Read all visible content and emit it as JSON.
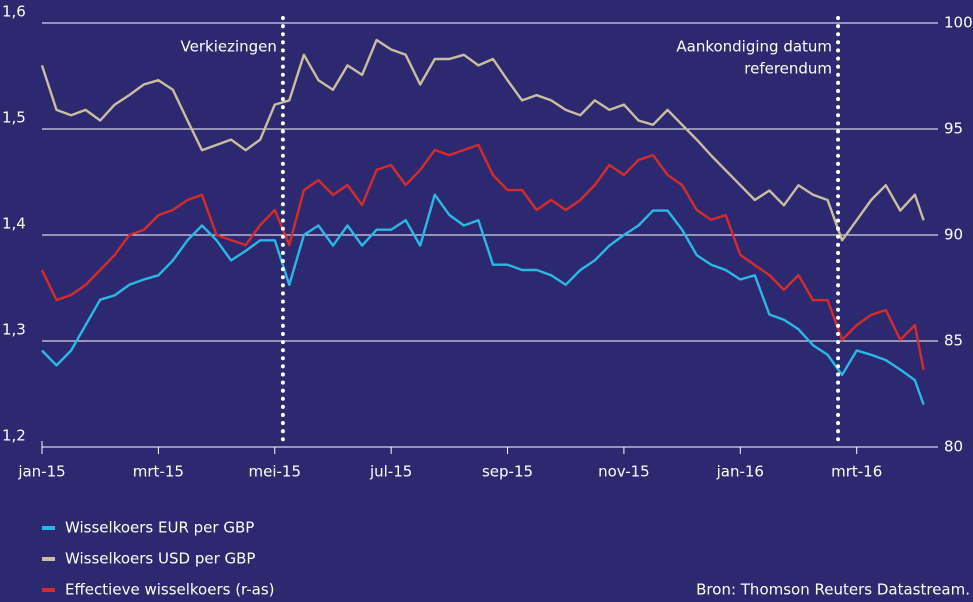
{
  "chart_data": {
    "type": "line",
    "source": "Bron: Thomson Reuters Datastream.",
    "x": [
      0,
      0.25,
      0.5,
      0.75,
      1,
      1.25,
      1.5,
      1.75,
      2,
      2.25,
      2.5,
      2.75,
      3,
      3.25,
      3.5,
      3.75,
      4,
      4.25,
      4.5,
      4.75,
      5,
      5.25,
      5.5,
      5.75,
      6,
      6.25,
      6.5,
      6.75,
      7,
      7.25,
      7.5,
      7.75,
      8,
      8.25,
      8.5,
      8.75,
      9,
      9.25,
      9.5,
      9.75,
      10,
      10.25,
      10.5,
      10.75,
      11,
      11.25,
      11.5,
      11.75,
      12,
      12.25,
      12.5,
      12.75,
      13,
      13.25,
      13.5,
      13.75,
      14,
      14.25,
      14.5,
      14.75,
      15,
      15.15
    ],
    "xlim": [
      0,
      15.26
    ],
    "xticks": [
      {
        "value": 0,
        "label": "jan-15"
      },
      {
        "value": 2,
        "label": "mrt-15"
      },
      {
        "value": 4,
        "label": "mei-15"
      },
      {
        "value": 6,
        "label": "jul-15"
      },
      {
        "value": 8,
        "label": "sep-15"
      },
      {
        "value": 10,
        "label": "nov-15"
      },
      {
        "value": 12,
        "label": "jan-16"
      },
      {
        "value": 14,
        "label": "mrt-16"
      }
    ],
    "ylim": [
      1.2,
      1.6
    ],
    "yticks": [
      {
        "value": 1.2,
        "label": "1,2"
      },
      {
        "value": 1.3,
        "label": "1,3"
      },
      {
        "value": 1.4,
        "label": "1,4"
      },
      {
        "value": 1.5,
        "label": "1,5"
      },
      {
        "value": 1.6,
        "label": "1,6"
      }
    ],
    "y2lim": [
      80,
      100
    ],
    "y2ticks": [
      80,
      85,
      90,
      95,
      100
    ],
    "grid": true,
    "annotations": [
      {
        "x": 4.14,
        "lines": [
          "Verkiezingen"
        ]
      },
      {
        "x": 13.68,
        "lines": [
          "Aankondiging datum",
          "referendum"
        ]
      }
    ],
    "series": [
      {
        "name": "Wisselkoers EUR per GBP",
        "color": "#2bb8e4",
        "axis": "y",
        "values": [
          1.291,
          1.277,
          1.291,
          1.315,
          1.339,
          1.343,
          1.353,
          1.358,
          1.362,
          1.376,
          1.395,
          1.409,
          1.395,
          1.376,
          1.385,
          1.395,
          1.395,
          1.353,
          1.4,
          1.409,
          1.39,
          1.409,
          1.39,
          1.405,
          1.405,
          1.414,
          1.39,
          1.438,
          1.419,
          1.409,
          1.414,
          1.372,
          1.372,
          1.367,
          1.367,
          1.362,
          1.353,
          1.367,
          1.376,
          1.39,
          1.4,
          1.409,
          1.423,
          1.423,
          1.405,
          1.381,
          1.372,
          1.367,
          1.358,
          1.362,
          1.325,
          1.32,
          1.311,
          1.296,
          1.287,
          1.268,
          1.291,
          1.287,
          1.282,
          1.273,
          1.263,
          1.24
        ]
      },
      {
        "name": "Wisselkoers USD per GBP",
        "color": "#cbbd9f",
        "axis": "y",
        "values": [
          1.56,
          1.518,
          1.513,
          1.518,
          1.508,
          1.523,
          1.532,
          1.542,
          1.546,
          1.537,
          1.508,
          1.48,
          1.485,
          1.49,
          1.48,
          1.49,
          1.523,
          1.527,
          1.57,
          1.546,
          1.537,
          1.56,
          1.551,
          1.584,
          1.575,
          1.57,
          1.542,
          1.566,
          1.566,
          1.57,
          1.56,
          1.566,
          1.546,
          1.527,
          1.532,
          1.527,
          1.518,
          1.513,
          1.527,
          1.518,
          1.523,
          1.508,
          1.504,
          1.518,
          1.504,
          1.49,
          1.475,
          1.461,
          1.447,
          1.433,
          1.442,
          1.428,
          1.447,
          1.438,
          1.433,
          1.395,
          1.414,
          1.433,
          1.447,
          1.423,
          1.438,
          1.414
        ]
      },
      {
        "name": "Effectieve wisselkoers (r-as)",
        "color": "#d42b2b",
        "axis": "y2",
        "values": [
          88.35,
          86.93,
          87.17,
          87.64,
          88.35,
          89.06,
          90.0,
          90.24,
          90.94,
          91.18,
          91.65,
          91.89,
          90.0,
          89.76,
          89.53,
          90.47,
          91.18,
          89.53,
          92.12,
          92.59,
          91.89,
          92.36,
          91.41,
          93.07,
          93.3,
          92.36,
          93.07,
          94.01,
          93.77,
          94.01,
          94.25,
          92.83,
          92.12,
          92.12,
          91.18,
          91.65,
          91.18,
          91.65,
          92.36,
          93.3,
          92.83,
          93.54,
          93.77,
          92.83,
          92.36,
          91.18,
          90.71,
          90.94,
          89.06,
          88.58,
          88.11,
          87.41,
          88.11,
          86.93,
          86.93,
          85.05,
          85.75,
          86.23,
          86.46,
          85.05,
          85.75,
          83.63
        ]
      }
    ]
  }
}
